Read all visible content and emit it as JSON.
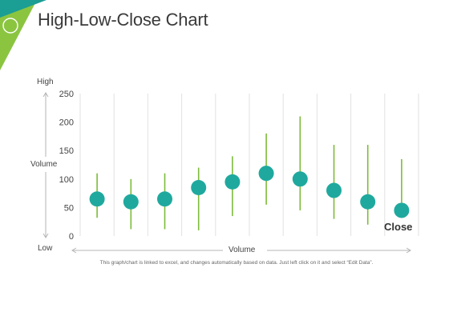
{
  "title": "High-Low-Close Chart",
  "colors": {
    "marker": "#1fa99e",
    "whisker": "#7cbc3a",
    "grid": "#e2e2e2",
    "corner_dark": "#1b9e94",
    "corner_green": "#8bc540"
  },
  "axis_words": {
    "high": "High",
    "low": "Low",
    "y_label": "Volume",
    "x_label": "Volume"
  },
  "caption": "This graph/chart is linked to excel, and changes automatically based on data. Just left click on it and select “Edit Data”.",
  "chart_data": {
    "type": "high-low-close",
    "ylim": [
      0,
      250
    ],
    "yticks": [
      0,
      50,
      100,
      150,
      200,
      250
    ],
    "grid": "vertical",
    "series": [
      {
        "name": "Close",
        "high": [
          110,
          100,
          110,
          120,
          140,
          180,
          210,
          160,
          160,
          135
        ],
        "low": [
          32,
          12,
          12,
          10,
          35,
          55,
          45,
          30,
          20,
          40
        ],
        "close": [
          65,
          60,
          65,
          85,
          95,
          110,
          100,
          80,
          60,
          45
        ]
      }
    ]
  }
}
